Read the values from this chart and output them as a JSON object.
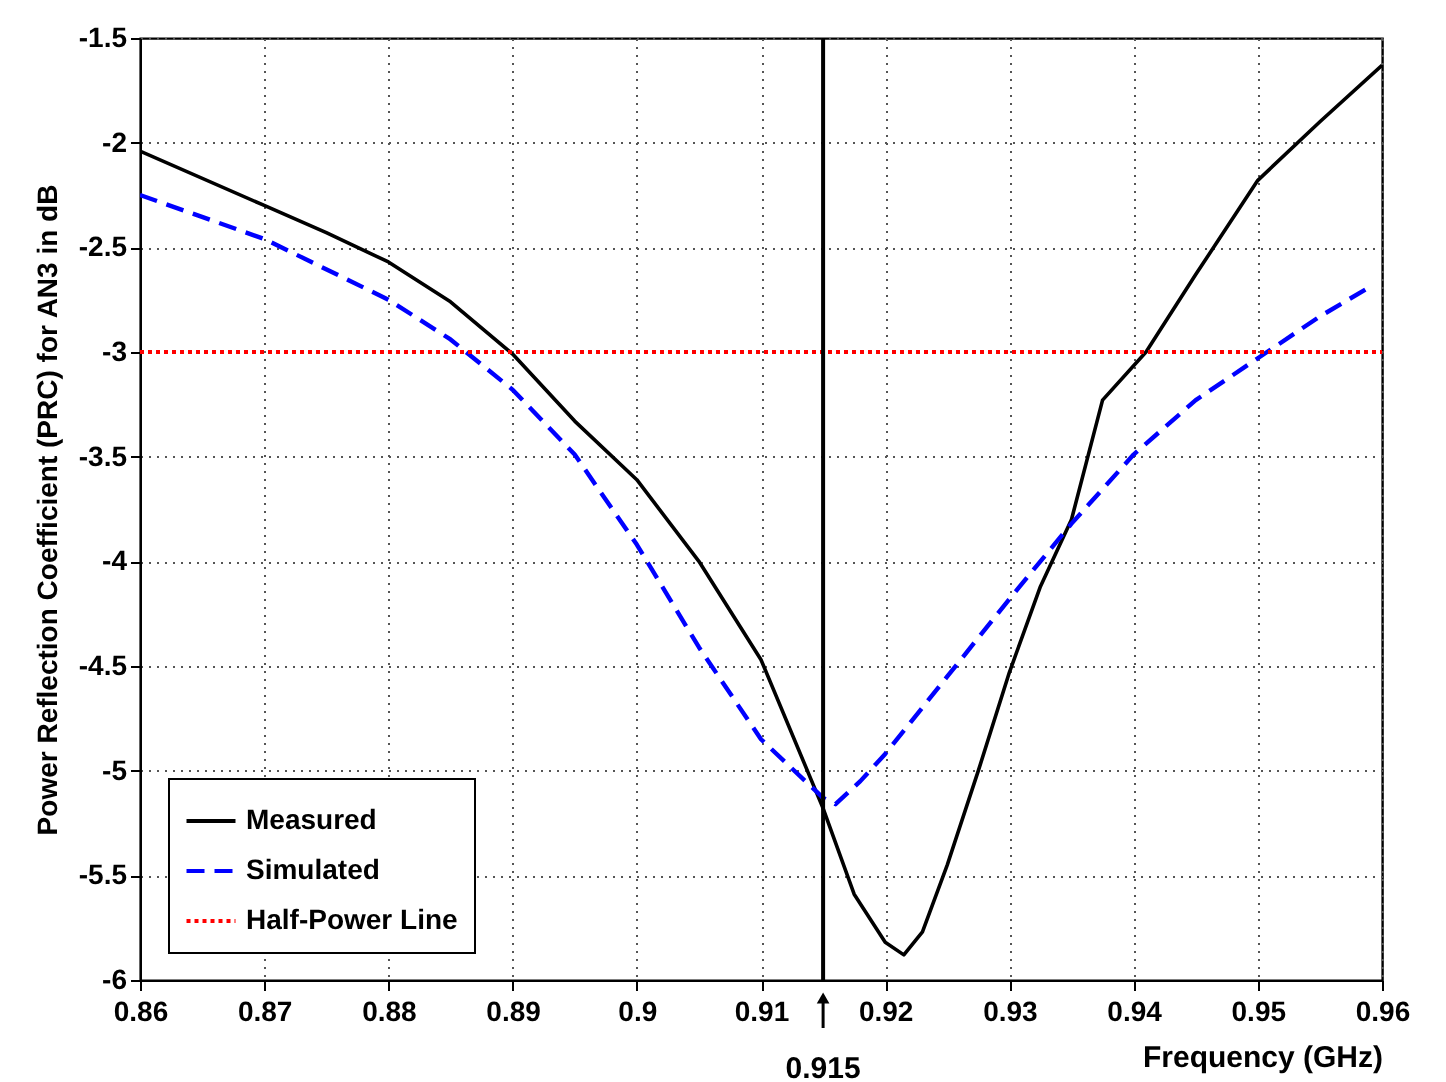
{
  "chart_data": {
    "type": "line",
    "xlabel": "Frequency (GHz)",
    "ylabel": "Power Reflection Coefficient (PRC) for AN3 in dB",
    "xlim": [
      0.86,
      0.96
    ],
    "ylim": [
      -6,
      -1.5
    ],
    "xticks": [
      0.86,
      0.87,
      0.88,
      0.89,
      0.9,
      0.91,
      0.92,
      0.93,
      0.94,
      0.95,
      0.96
    ],
    "yticks": [
      -6,
      -5.5,
      -5,
      -4.5,
      -4,
      -3.5,
      -3,
      -2.5,
      -2,
      -1.5
    ],
    "grid": true,
    "legend": "bottom left",
    "marker": "none",
    "series": [
      {
        "name": "Measured",
        "color": "#000000",
        "line_style": "solid",
        "x": [
          0.86,
          0.87,
          0.875,
          0.88,
          0.885,
          0.89,
          0.895,
          0.9,
          0.905,
          0.91,
          0.915,
          0.9175,
          0.92,
          0.9215,
          0.923,
          0.925,
          0.9275,
          0.93,
          0.9325,
          0.935,
          0.9375,
          0.941,
          0.945,
          0.95,
          0.955,
          0.96
        ],
        "values": [
          -2.04,
          -2.3,
          -2.43,
          -2.57,
          -2.76,
          -3.01,
          -3.33,
          -3.61,
          -4.0,
          -4.47,
          -5.18,
          -5.59,
          -5.82,
          -5.88,
          -5.77,
          -5.45,
          -5.0,
          -4.53,
          -4.12,
          -3.8,
          -3.23,
          -3.0,
          -2.63,
          -2.18,
          -1.9,
          -1.63
        ]
      },
      {
        "name": "Simulated",
        "color": "#0000ff",
        "line_style": "dashed",
        "x": [
          0.86,
          0.87,
          0.88,
          0.885,
          0.89,
          0.895,
          0.9,
          0.905,
          0.91,
          0.915,
          0.916,
          0.918,
          0.92,
          0.925,
          0.93,
          0.935,
          0.94,
          0.945,
          0.95,
          0.955,
          0.959
        ],
        "values": [
          -2.25,
          -2.46,
          -2.75,
          -2.94,
          -3.18,
          -3.49,
          -3.92,
          -4.41,
          -4.85,
          -5.13,
          -5.16,
          -5.05,
          -4.92,
          -4.55,
          -4.18,
          -3.82,
          -3.49,
          -3.23,
          -3.03,
          -2.83,
          -2.69
        ]
      },
      {
        "name": "Half-Power Line",
        "color": "#ff0000",
        "line_style": "dotted",
        "x": [
          0.86,
          0.96
        ],
        "values": [
          -3,
          -3
        ]
      }
    ],
    "ref_lines": [
      {
        "axis": "x",
        "value": 0.915,
        "label": "0.915",
        "color": "#000000"
      }
    ]
  }
}
